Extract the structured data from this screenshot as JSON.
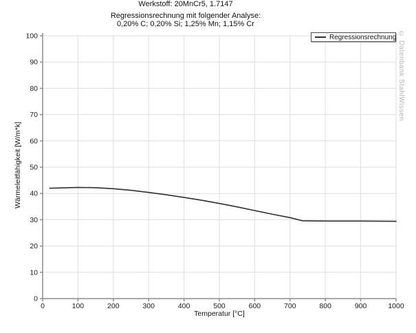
{
  "header": {
    "title": "Werkstoff: 20MnCr5, 1.7147",
    "subtitle_line1": "Regressionsrechnung mit folgender Analyse:",
    "subtitle_line2": "0,20% C; 0,20% Si; 1,25% Mn; 1,15% Cr"
  },
  "watermark": "© Datenbank StahlWissen",
  "legend": {
    "entries": [
      "Regressionsrechnung"
    ],
    "position": "top-right"
  },
  "colors": {
    "curve": "#2f2f2f",
    "grid": "#dedede",
    "axis": "#8c8c8c",
    "tick_text": "#1a1a1a",
    "watermark": "#b4b4b4"
  },
  "chart_data": {
    "type": "line",
    "title": "Werkstoff: 20MnCr5, 1.7147",
    "subtitle": "Regressionsrechnung mit folgender Analyse: 0,20% C; 0,20% Si; 1,25% Mn; 1,15% Cr",
    "xlabel": "Temperatur [°C]",
    "ylabel": "Wärmeleitfähigkeit [W/m*k]",
    "xlim": [
      0,
      1000
    ],
    "ylim": [
      0,
      100
    ],
    "x_ticks": [
      0,
      100,
      200,
      300,
      400,
      500,
      600,
      700,
      800,
      900,
      1000
    ],
    "y_ticks": [
      0,
      10,
      20,
      30,
      40,
      50,
      60,
      70,
      80,
      90,
      100
    ],
    "grid": true,
    "legend_position": "top-right",
    "series": [
      {
        "name": "Regressionsrechnung",
        "color": "#2f2f2f",
        "x": [
          20,
          50,
          100,
          150,
          200,
          250,
          300,
          350,
          400,
          450,
          500,
          550,
          600,
          650,
          700,
          735,
          800,
          900,
          1000
        ],
        "y": [
          42.0,
          42.1,
          42.3,
          42.2,
          41.8,
          41.2,
          40.4,
          39.5,
          38.5,
          37.4,
          36.2,
          34.9,
          33.5,
          32.1,
          30.8,
          29.6,
          29.5,
          29.5,
          29.4
        ]
      }
    ]
  }
}
